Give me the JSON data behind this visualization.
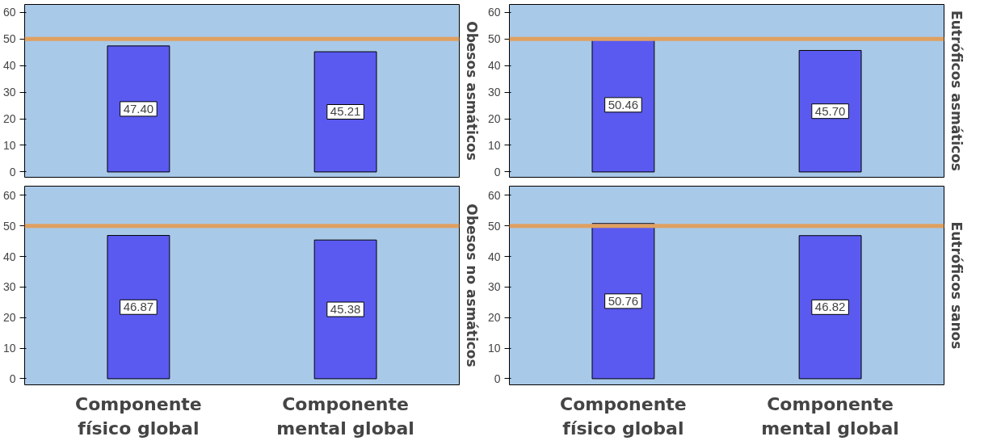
{
  "chart_data": [
    {
      "type": "bar",
      "title": "Obesos asmáticos",
      "categories": [
        null,
        null
      ],
      "values": [
        47.4,
        45.21
      ],
      "value_labels": [
        "47.40",
        "45.21"
      ],
      "color": "#5a5af0",
      "ylim": [
        -2,
        63
      ],
      "yticks": [
        0,
        10,
        20,
        30,
        40,
        50,
        60
      ],
      "ref_lines": [
        {
          "axis": "y",
          "value": 50,
          "color": "#e0a060"
        }
      ],
      "tick_labels": "y"
    },
    {
      "type": "bar",
      "title": "Eutróficos asmáticos",
      "categories": [
        null,
        null
      ],
      "values": [
        50.46,
        45.7
      ],
      "value_labels": [
        "50.46",
        "45.70"
      ],
      "color": "#5a5af0",
      "ylim": [
        -2,
        63
      ],
      "yticks": [
        0,
        10,
        20,
        30,
        40,
        50,
        60
      ],
      "ref_lines": [
        {
          "axis": "y",
          "value": 50,
          "color": "#e0a060"
        }
      ],
      "tick_labels": "y"
    },
    {
      "type": "bar",
      "title": "Obesos no asmáticos",
      "categories": [
        "Componente físico global",
        "Componente mental global"
      ],
      "values": [
        46.87,
        45.38
      ],
      "value_labels": [
        "46.87",
        "45.38"
      ],
      "color": "#5a5af0",
      "ylim": [
        -2,
        63
      ],
      "yticks": [
        0,
        10,
        20,
        30,
        40,
        50,
        60
      ],
      "ref_lines": [
        {
          "axis": "y",
          "value": 50,
          "color": "#e0a060"
        }
      ]
    },
    {
      "type": "bar",
      "title": "Eutróficos sanos",
      "categories": [
        "Componente físico global",
        "Componente mental global"
      ],
      "values": [
        50.76,
        46.82
      ],
      "value_labels": [
        "50.76",
        "46.82"
      ],
      "color": "#5a5af0",
      "ylim": [
        -2,
        63
      ],
      "yticks": [
        0,
        10,
        20,
        30,
        40,
        50,
        60
      ],
      "ref_lines": [
        {
          "axis": "y",
          "value": 50,
          "color": "#e0a060"
        }
      ]
    }
  ]
}
